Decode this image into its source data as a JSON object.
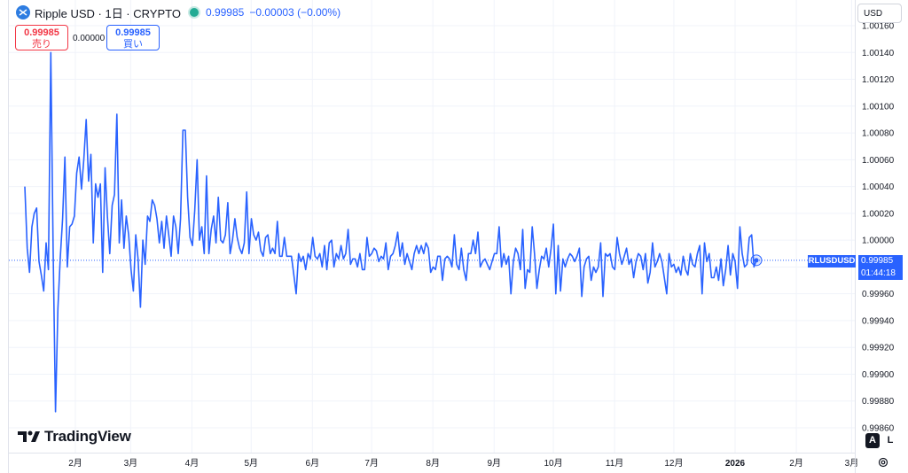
{
  "header": {
    "title": "Ripple USD · 1日 · CRYPTO",
    "price": "0.99985",
    "change": "−0.00003 (−0.00%)",
    "currency": "USD"
  },
  "trade": {
    "sell_price": "0.99985",
    "sell_label": "売り",
    "spread": "0.00000",
    "buy_price": "0.99985",
    "buy_label": "買い"
  },
  "price_scale": {
    "symbol_tag": "RLUSDUSD",
    "last_price": "0.99985",
    "countdown": "01:44:18",
    "auto_label": "A",
    "log_label": "L"
  },
  "watermark": {
    "text": "TradingView"
  },
  "colors": {
    "line": "#2962ff",
    "accent": "#2962ff",
    "sell": "#f23645",
    "live": "#22ab94"
  },
  "chart_data": {
    "type": "line",
    "title": "Ripple USD · 1日 · CRYPTO",
    "xlabel": "",
    "ylabel": "",
    "ylim": [
      0.9986,
      1.0016
    ],
    "y_ticks": [
      "1.00160",
      "1.00140",
      "1.00120",
      "1.00100",
      "1.00080",
      "1.00060",
      "1.00040",
      "1.00020",
      "1.00000",
      "0.99980",
      "0.99960",
      "0.99940",
      "0.99920",
      "0.99900",
      "0.99880",
      "0.99860"
    ],
    "x_ticks": [
      {
        "label": "2月",
        "t": 1
      },
      {
        "label": "3月",
        "t": 29
      },
      {
        "label": "4月",
        "t": 60
      },
      {
        "label": "5月",
        "t": 90
      },
      {
        "label": "6月",
        "t": 121
      },
      {
        "label": "7月",
        "t": 151
      },
      {
        "label": "8月",
        "t": 182
      },
      {
        "label": "9月",
        "t": 213
      },
      {
        "label": "10月",
        "t": 243
      },
      {
        "label": "11月",
        "t": 274
      },
      {
        "label": "12月",
        "t": 304
      },
      {
        "label": "2026",
        "t": 335
      },
      {
        "label": "2月",
        "t": 366
      },
      {
        "label": "3月",
        "t": 394
      }
    ],
    "series": [
      {
        "values": [
          1.0004,
          0.99994,
          0.99976,
          1.0001,
          1.0002,
          1.00024,
          0.99984,
          0.99974,
          0.99962,
          0.99998,
          0.99978,
          1.0014,
          0.99994,
          0.99872,
          0.99949,
          0.99986,
          1.00016,
          1.00062,
          0.9998,
          1.0001,
          1.00012,
          1.00018,
          1.0005,
          1.00062,
          1.00038,
          1.0006,
          1.0009,
          1.00044,
          1.00064,
          0.99998,
          1.00042,
          1.00032,
          1.00042,
          0.99976,
          1.00054,
          1.00018,
          0.9999,
          1.00026,
          1.00034,
          1.00094,
          0.99998,
          1.0003,
          0.99994,
          1.00018,
          1.00004,
          0.99978,
          0.99962,
          1.00004,
          0.99986,
          0.9995,
          1.0,
          0.99982,
          1.00018,
          1.00014,
          1.0003,
          1.00026,
          1.00016,
          0.99998,
          1.00014,
          0.99994,
          1.00018,
          1.00004,
          0.99988,
          1.00018,
          1.0001,
          0.9999,
          1.00016,
          1.00082,
          1.00082,
          1.00032,
          1.00002,
          0.99996,
          1.00022,
          1.0006,
          1.0,
          1.0001,
          0.9999,
          1.00048,
          0.9999,
          1.00008,
          1.00018,
          0.99998,
          1.00032,
          1.0,
          0.99998,
          1.00004,
          1.00028,
          0.9999,
          1.0,
          1.00016,
          1.00002,
          0.99994,
          0.9999,
          0.99998,
          1.00036,
          0.9999,
          1.00016,
          1.00004,
          1.0,
          1.00006,
          0.99992,
          0.99988,
          1.00002,
          1.00004,
          0.9999,
          0.99994,
          0.9999,
          1.00014,
          0.99988,
          0.99988,
          1.00002,
          0.99988,
          0.99988,
          0.99988,
          0.99974,
          0.9996,
          0.9999,
          0.99984,
          0.99988,
          0.99978,
          0.9999,
          0.99986,
          1.00002,
          0.99988,
          0.99986,
          0.9999,
          0.9998,
          0.99996,
          0.99978,
          0.99998,
          1.0,
          0.9998,
          0.9999,
          0.99986,
          0.99996,
          0.99986,
          0.9999,
          1.00008,
          0.99982,
          0.99986,
          0.99986,
          0.9998,
          0.9999,
          0.99978,
          0.99978,
          1.00002,
          0.99988,
          0.9999,
          0.99994,
          0.99992,
          0.99984,
          0.99988,
          0.99986,
          0.99998,
          0.99978,
          0.99988,
          0.9999,
          0.99996,
          1.00006,
          0.99988,
          0.99998,
          0.99982,
          0.9999,
          0.99984,
          0.99978,
          0.9999,
          0.99996,
          0.9999,
          0.99996,
          0.9999,
          0.99998,
          0.99994,
          0.99976,
          0.9998,
          0.99978,
          0.99988,
          0.99988,
          0.9997,
          0.99986,
          0.99988,
          0.99986,
          0.9998,
          1.00004,
          0.99982,
          0.99978,
          0.99994,
          0.99978,
          0.9997,
          0.9999,
          0.9999,
          1.0,
          0.9999,
          1.00006,
          0.9998,
          0.99984,
          0.99986,
          0.99982,
          0.99978,
          0.99984,
          0.9999,
          0.9999,
          1.0001,
          0.9998,
          0.9999,
          0.99982,
          0.99988,
          0.9996,
          0.99984,
          0.99994,
          0.9999,
          0.99978,
          1.00008,
          0.99964,
          0.99978,
          0.99976,
          1.0001,
          0.9999,
          0.99964,
          0.99978,
          0.99988,
          0.99986,
          0.99994,
          0.9998,
          0.99994,
          1.00012,
          0.9996,
          0.99996,
          0.99962,
          0.99986,
          0.9998,
          0.99986,
          0.9999,
          0.99988,
          0.99984,
          0.99988,
          0.99994,
          0.99958,
          0.9998,
          0.99986,
          0.99988,
          0.9997,
          0.9998,
          0.99976,
          0.9998,
          0.99998,
          0.99958,
          0.9999,
          0.99988,
          0.9999,
          0.9998,
          0.99978,
          1.00002,
          0.9999,
          0.99982,
          0.99988,
          0.99994,
          0.99982,
          0.99986,
          0.99972,
          0.99984,
          0.9999,
          0.99988,
          0.99978,
          0.9999,
          0.99968,
          0.99976,
          0.99998,
          0.9998,
          0.99984,
          0.9999,
          0.99984,
          0.99972,
          0.9996,
          0.9999,
          0.9998,
          0.99982,
          0.99976,
          0.9998,
          0.99974,
          0.99988,
          0.99978,
          0.99974,
          0.9999,
          0.99982,
          0.9998,
          0.9999,
          0.99996,
          0.9996,
          0.99998,
          0.99984,
          0.9999,
          0.99972,
          0.99972,
          0.9998,
          0.9997,
          0.99986,
          0.99966,
          0.99978,
          0.99996,
          0.99974,
          0.9999,
          0.99984,
          0.99964,
          1.0001,
          0.9999,
          0.9998,
          0.99982,
          1.00002,
          1.00004,
          0.9998,
          0.99985
        ],
        "color": "#2962ff"
      }
    ]
  }
}
